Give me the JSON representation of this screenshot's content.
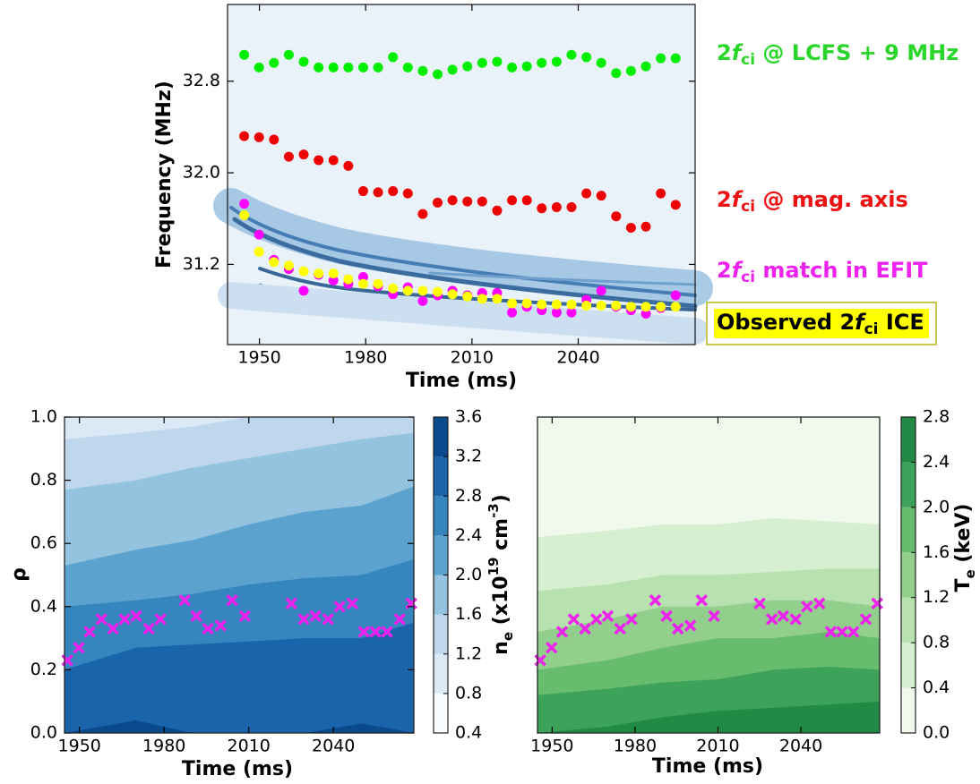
{
  "chart_data": [
    {
      "type": "scatter",
      "xlabel": "Time (ms)",
      "ylabel": "Frequency (MHz)",
      "xlim": [
        1941,
        2073
      ],
      "ylim": [
        30.5,
        33.47
      ],
      "xticks": [
        1950,
        1980,
        2010,
        2040
      ],
      "yticks": [
        31.2,
        {
          "value": 32,
          "label": "32.0"
        },
        32.8
      ],
      "series": [
        {
          "name": [
            "2",
            "f",
            "ci",
            " @ LCFS + 9 MHz"
          ],
          "color": "#00ee00",
          "x": [
            1945.7,
            1949.9,
            1954.1,
            1958.3,
            1962.5,
            1966.7,
            1970.9,
            1975.1,
            1979.3,
            1983.5,
            1987.7,
            1991.9,
            1996.1,
            2000.3,
            2004.5,
            2008.7,
            2012.9,
            2017.1,
            2021.3,
            2025.5,
            2029.7,
            2033.9,
            2038.1,
            2042.3,
            2046.5,
            2050.7,
            2054.9,
            2059.1,
            2063.3,
            2067.5
          ],
          "values": [
            33.03,
            32.92,
            32.96,
            33.03,
            32.97,
            32.92,
            32.92,
            32.92,
            32.92,
            32.92,
            33.01,
            32.92,
            32.89,
            32.86,
            32.9,
            32.93,
            32.96,
            32.97,
            32.92,
            32.93,
            32.96,
            32.97,
            33.03,
            33.01,
            32.96,
            32.87,
            32.89,
            32.93,
            33.0,
            33.0
          ]
        },
        {
          "name": [
            "2",
            "f",
            "ci",
            " @ mag. axis"
          ],
          "color": "#ee0000",
          "x": [
            1945.7,
            1949.9,
            1954.1,
            1958.3,
            1962.5,
            1966.7,
            1970.9,
            1975.1,
            1979.3,
            1983.5,
            1987.7,
            1991.9,
            1996.1,
            2000.3,
            2004.5,
            2008.7,
            2012.9,
            2017.1,
            2021.3,
            2025.5,
            2029.7,
            2033.9,
            2038.1,
            2042.3,
            2046.5,
            2050.7,
            2054.9,
            2059.1,
            2063.3,
            2067.5
          ],
          "values": [
            32.32,
            32.31,
            32.29,
            32.14,
            32.16,
            32.11,
            32.11,
            32.06,
            31.84,
            31.83,
            31.84,
            31.82,
            31.64,
            31.74,
            31.76,
            31.75,
            31.75,
            31.67,
            31.76,
            31.76,
            31.69,
            31.7,
            31.7,
            31.82,
            31.8,
            31.62,
            31.52,
            31.53,
            31.82,
            31.72
          ]
        },
        {
          "name": [
            "2",
            "f",
            "ci",
            " match in EFIT"
          ],
          "color": "#ff00ff",
          "x": [
            1945.7,
            1949.9,
            1954.1,
            1958.3,
            1962.5,
            1966.7,
            1970.9,
            1975.1,
            1979.3,
            1983.5,
            1987.7,
            1991.9,
            1996.1,
            2000.3,
            2004.5,
            2008.7,
            2012.9,
            2017.1,
            2021.3,
            2025.5,
            2029.7,
            2033.9,
            2038.1,
            2042.3,
            2046.5,
            2050.7,
            2054.9,
            2059.1,
            2063.3,
            2067.5
          ],
          "values": [
            31.73,
            31.46,
            31.24,
            31.16,
            30.97,
            31.11,
            31.06,
            31.03,
            31.09,
            31.01,
            30.94,
            31.0,
            30.88,
            30.93,
            30.97,
            30.93,
            30.95,
            30.95,
            30.78,
            30.83,
            30.8,
            30.78,
            30.78,
            30.89,
            30.97,
            30.83,
            30.8,
            30.77,
            30.82,
            30.93
          ]
        },
        {
          "name": [
            "Observed ",
            "2",
            "f",
            "ci",
            " ICE"
          ],
          "color": "#ffff00",
          "x": [
            1945.7,
            1949.9,
            1954.1,
            1958.3,
            1962.5,
            1966.7,
            1970.9,
            1975.1,
            1979.3,
            1983.5,
            1987.7,
            1991.9,
            1996.1,
            2000.3,
            2004.5,
            2008.7,
            2012.9,
            2017.1,
            2021.3,
            2025.5,
            2029.7,
            2033.9,
            2038.1,
            2042.3,
            2046.5,
            2050.7,
            2054.9,
            2059.1,
            2063.3,
            2067.5
          ],
          "values": [
            31.63,
            31.31,
            31.22,
            31.19,
            31.14,
            31.12,
            31.12,
            31.07,
            31.03,
            31.03,
            30.99,
            30.97,
            30.97,
            30.96,
            30.94,
            30.92,
            30.9,
            30.9,
            30.86,
            30.86,
            30.85,
            30.85,
            30.85,
            30.84,
            30.84,
            30.84,
            30.83,
            30.83,
            30.83,
            30.83
          ]
        }
      ]
    },
    {
      "type": "contour",
      "xlabel": "Time (ms)",
      "ylabel": "ρ",
      "clabel": [
        "n",
        "e",
        " (x10",
        "19",
        " cm",
        "-3",
        ")"
      ],
      "xlim": [
        1944.7,
        2068.5
      ],
      "ylim": [
        0,
        1
      ],
      "xticks": [
        1950,
        1980,
        2010,
        2040
      ],
      "yticks": [
        {
          "value": 0,
          "label": "0.0"
        },
        0.2,
        0.4,
        0.6,
        0.8,
        {
          "value": 1,
          "label": "1.0"
        }
      ],
      "clim": [
        0.4,
        3.6
      ],
      "cticks": [
        0.4,
        0.8,
        1.2,
        1.6,
        {
          "value": 2,
          "label": "2.0"
        },
        2.4,
        2.8,
        3.2,
        3.6
      ],
      "colors": [
        "#f7fbff",
        "#dbe9f6",
        "#bfd7ec",
        "#93c3df",
        "#5ba2cf",
        "#3585bf",
        "#1964ab",
        "#0a4a8c"
      ],
      "contour_x": [
        1944.7,
        1970,
        1990,
        2010,
        2030,
        2050,
        2068.5
      ],
      "contour_levels": [
        1.2,
        1.6,
        2.0,
        2.4,
        2.8,
        3.2
      ],
      "contour_rho": [
        [
          0.93,
          0.95,
          0.97,
          1.0,
          1.0,
          1.0,
          1.0
        ],
        [
          0.77,
          0.8,
          0.84,
          0.87,
          0.9,
          0.93,
          0.95
        ],
        [
          0.53,
          0.58,
          0.61,
          0.66,
          0.7,
          0.72,
          0.78
        ],
        [
          0.4,
          0.42,
          0.44,
          0.47,
          0.49,
          0.5,
          0.55
        ],
        [
          0.2,
          0.27,
          0.28,
          0.29,
          0.3,
          0.3,
          0.35
        ],
        [
          0,
          0.04,
          0,
          0,
          0,
          0.03,
          0
        ]
      ],
      "series": [
        {
          "color": "#ee22ee",
          "x": [
            1945.7,
            1949.8,
            1953.6,
            1957.8,
            1961.9,
            1966.0,
            1970.1,
            1974.6,
            1978.7,
            1987.3,
            1991.4,
            1995.5,
            2000.0,
            2004.1,
            2008.6,
            2025.1,
            2029.5,
            2033.6,
            2038.1,
            2042.2,
            2046.7,
            2050.8,
            2054.9,
            2059.0,
            2063.5,
            2067.6
          ],
          "values": [
            0.23,
            0.27,
            0.32,
            0.36,
            0.33,
            0.36,
            0.37,
            0.33,
            0.36,
            0.42,
            0.37,
            0.33,
            0.34,
            0.42,
            0.37,
            0.41,
            0.36,
            0.37,
            0.36,
            0.4,
            0.41,
            0.32,
            0.32,
            0.32,
            0.36,
            0.41
          ]
        }
      ]
    },
    {
      "type": "contour",
      "xlabel": "Time (ms)",
      "clabel": [
        "T",
        "e",
        " (keV)"
      ],
      "xlim": [
        1944.7,
        2068.5
      ],
      "ylim": [
        0,
        1
      ],
      "xticks": [
        1950,
        1980,
        2010,
        2040
      ],
      "clim": [
        0,
        2.8
      ],
      "cticks": [
        {
          "value": 0,
          "label": "0.0"
        },
        0.4,
        0.8,
        1.2,
        1.6,
        {
          "value": 2,
          "label": "2.0"
        },
        2.4,
        2.8
      ],
      "colors": [
        "#f0f9ec",
        "#d6efd0",
        "#b7e1ae",
        "#92cf8d",
        "#68bc6e",
        "#3ea35a",
        "#218a44"
      ],
      "contour_x": [
        1944.7,
        1970,
        1990,
        2010,
        2030,
        2050,
        2068.5
      ],
      "contour_levels": [
        0.4,
        0.8,
        1.2,
        1.6,
        2.0,
        2.4
      ],
      "contour_rho": [
        [
          0.62,
          0.64,
          0.66,
          0.66,
          0.68,
          0.67,
          0.66
        ],
        [
          0.45,
          0.47,
          0.5,
          0.5,
          0.51,
          0.52,
          0.52
        ],
        [
          0.32,
          0.36,
          0.4,
          0.4,
          0.42,
          0.42,
          0.4
        ],
        [
          0.2,
          0.23,
          0.27,
          0.3,
          0.3,
          0.32,
          0.3
        ],
        [
          0.12,
          0.14,
          0.16,
          0.17,
          0.2,
          0.21,
          0.2
        ],
        [
          0,
          0.02,
          0.05,
          0.07,
          0.08,
          0.09,
          0.1
        ]
      ],
      "series": [
        {
          "color": "#ee22ee",
          "x": [
            1945.7,
            1949.8,
            1953.6,
            1957.8,
            1961.9,
            1966.0,
            1970.1,
            1974.6,
            1978.7,
            1987.3,
            1991.4,
            1995.5,
            2000.0,
            2004.1,
            2008.6,
            2025.1,
            2029.5,
            2033.6,
            2038.1,
            2042.2,
            2046.7,
            2050.8,
            2054.9,
            2059.0,
            2063.5,
            2067.6
          ],
          "values": [
            0.23,
            0.27,
            0.32,
            0.36,
            0.33,
            0.36,
            0.37,
            0.33,
            0.36,
            0.42,
            0.37,
            0.33,
            0.34,
            0.42,
            0.37,
            0.41,
            0.36,
            0.37,
            0.36,
            0.4,
            0.41,
            0.32,
            0.32,
            0.32,
            0.36,
            0.41
          ]
        }
      ]
    }
  ]
}
